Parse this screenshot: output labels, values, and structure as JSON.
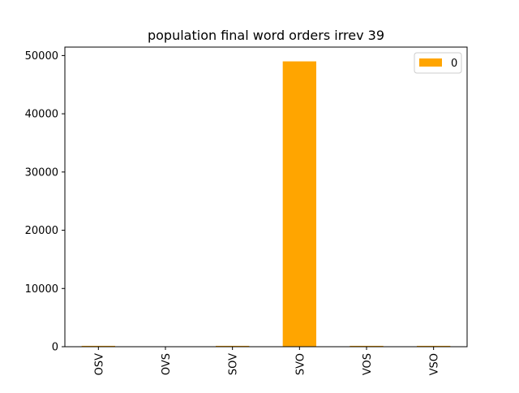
{
  "chart_data": {
    "type": "bar",
    "title": "population final word orders irrev 39",
    "xlabel": "",
    "ylabel": "",
    "categories": [
      "OSV",
      "OVS",
      "SOV",
      "SVO",
      "VOS",
      "VSO"
    ],
    "series": [
      {
        "name": "0",
        "values": [
          150,
          0,
          150,
          49000,
          150,
          150
        ],
        "color": "#ffa500"
      }
    ],
    "ylim": [
      0,
      51450
    ],
    "yticks": [
      0,
      10000,
      20000,
      30000,
      40000,
      50000
    ],
    "ytick_labels": [
      "0",
      "10000",
      "20000",
      "30000",
      "40000",
      "50000"
    ],
    "grid": false,
    "legend_position": "top-right"
  }
}
